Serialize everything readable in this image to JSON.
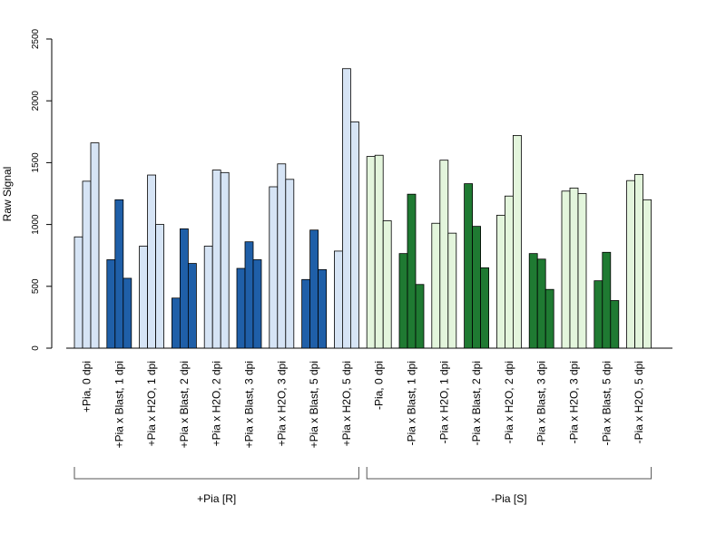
{
  "chart_data": {
    "type": "bar",
    "ylabel": "Raw Signal",
    "xlabel": "",
    "ylim": [
      0,
      2500
    ],
    "yticks": [
      0,
      500,
      1000,
      1500,
      2000,
      2500
    ],
    "grid": false,
    "legend": "none",
    "categories": [
      "+Pia, 0 dpi",
      "+Pia x Blast, 1 dpi",
      "+Pia x H2O, 1 dpi",
      "+Pia x Blast, 2 dpi",
      "+Pia x H2O, 2 dpi",
      "+Pia x Blast, 3 dpi",
      "+Pia x H2O, 3 dpi",
      "+Pia x Blast, 5 dpi",
      "+Pia x H2O, 5 dpi",
      "-Pia, 0 dpi",
      "-Pia x Blast, 1 dpi",
      "-Pia x H2O, 1 dpi",
      "-Pia x Blast, 2 dpi",
      "-Pia x H2O, 2 dpi",
      "-Pia x Blast, 3 dpi",
      "-Pia x H2O, 3 dpi",
      "-Pia x Blast, 5 dpi",
      "-Pia x H2O, 5 dpi"
    ],
    "replicates": [
      [
        900,
        1350,
        1660
      ],
      [
        715,
        1200,
        565
      ],
      [
        825,
        1400,
        1000
      ],
      [
        405,
        965,
        685
      ],
      [
        825,
        1440,
        1420
      ],
      [
        645,
        860,
        715
      ],
      [
        1305,
        1490,
        1365
      ],
      [
        555,
        955,
        635
      ],
      [
        785,
        2260,
        1830
      ],
      [
        1550,
        1560,
        1030
      ],
      [
        765,
        1245,
        515
      ],
      [
        1010,
        1520,
        930
      ],
      [
        1330,
        985,
        650
      ],
      [
        1075,
        1230,
        1720
      ],
      [
        765,
        720,
        475
      ],
      [
        1270,
        1295,
        1250
      ],
      [
        545,
        775,
        385
      ],
      [
        1355,
        1405,
        1200
      ]
    ],
    "bar_colors": [
      "#d6e4f5",
      "#1f5fa8",
      "#d6e4f5",
      "#1f5fa8",
      "#d6e4f5",
      "#1f5fa8",
      "#d6e4f5",
      "#1f5fa8",
      "#d6e4f5",
      "#e3f5dc",
      "#1f7a32",
      "#e3f5dc",
      "#1f7a32",
      "#e3f5dc",
      "#1f7a32",
      "#e3f5dc",
      "#1f7a32",
      "#e3f5dc"
    ],
    "groups": [
      {
        "label": "+Pia [R]",
        "from": 0,
        "to": 8
      },
      {
        "label": "-Pia [S]",
        "from": 9,
        "to": 17
      }
    ]
  }
}
